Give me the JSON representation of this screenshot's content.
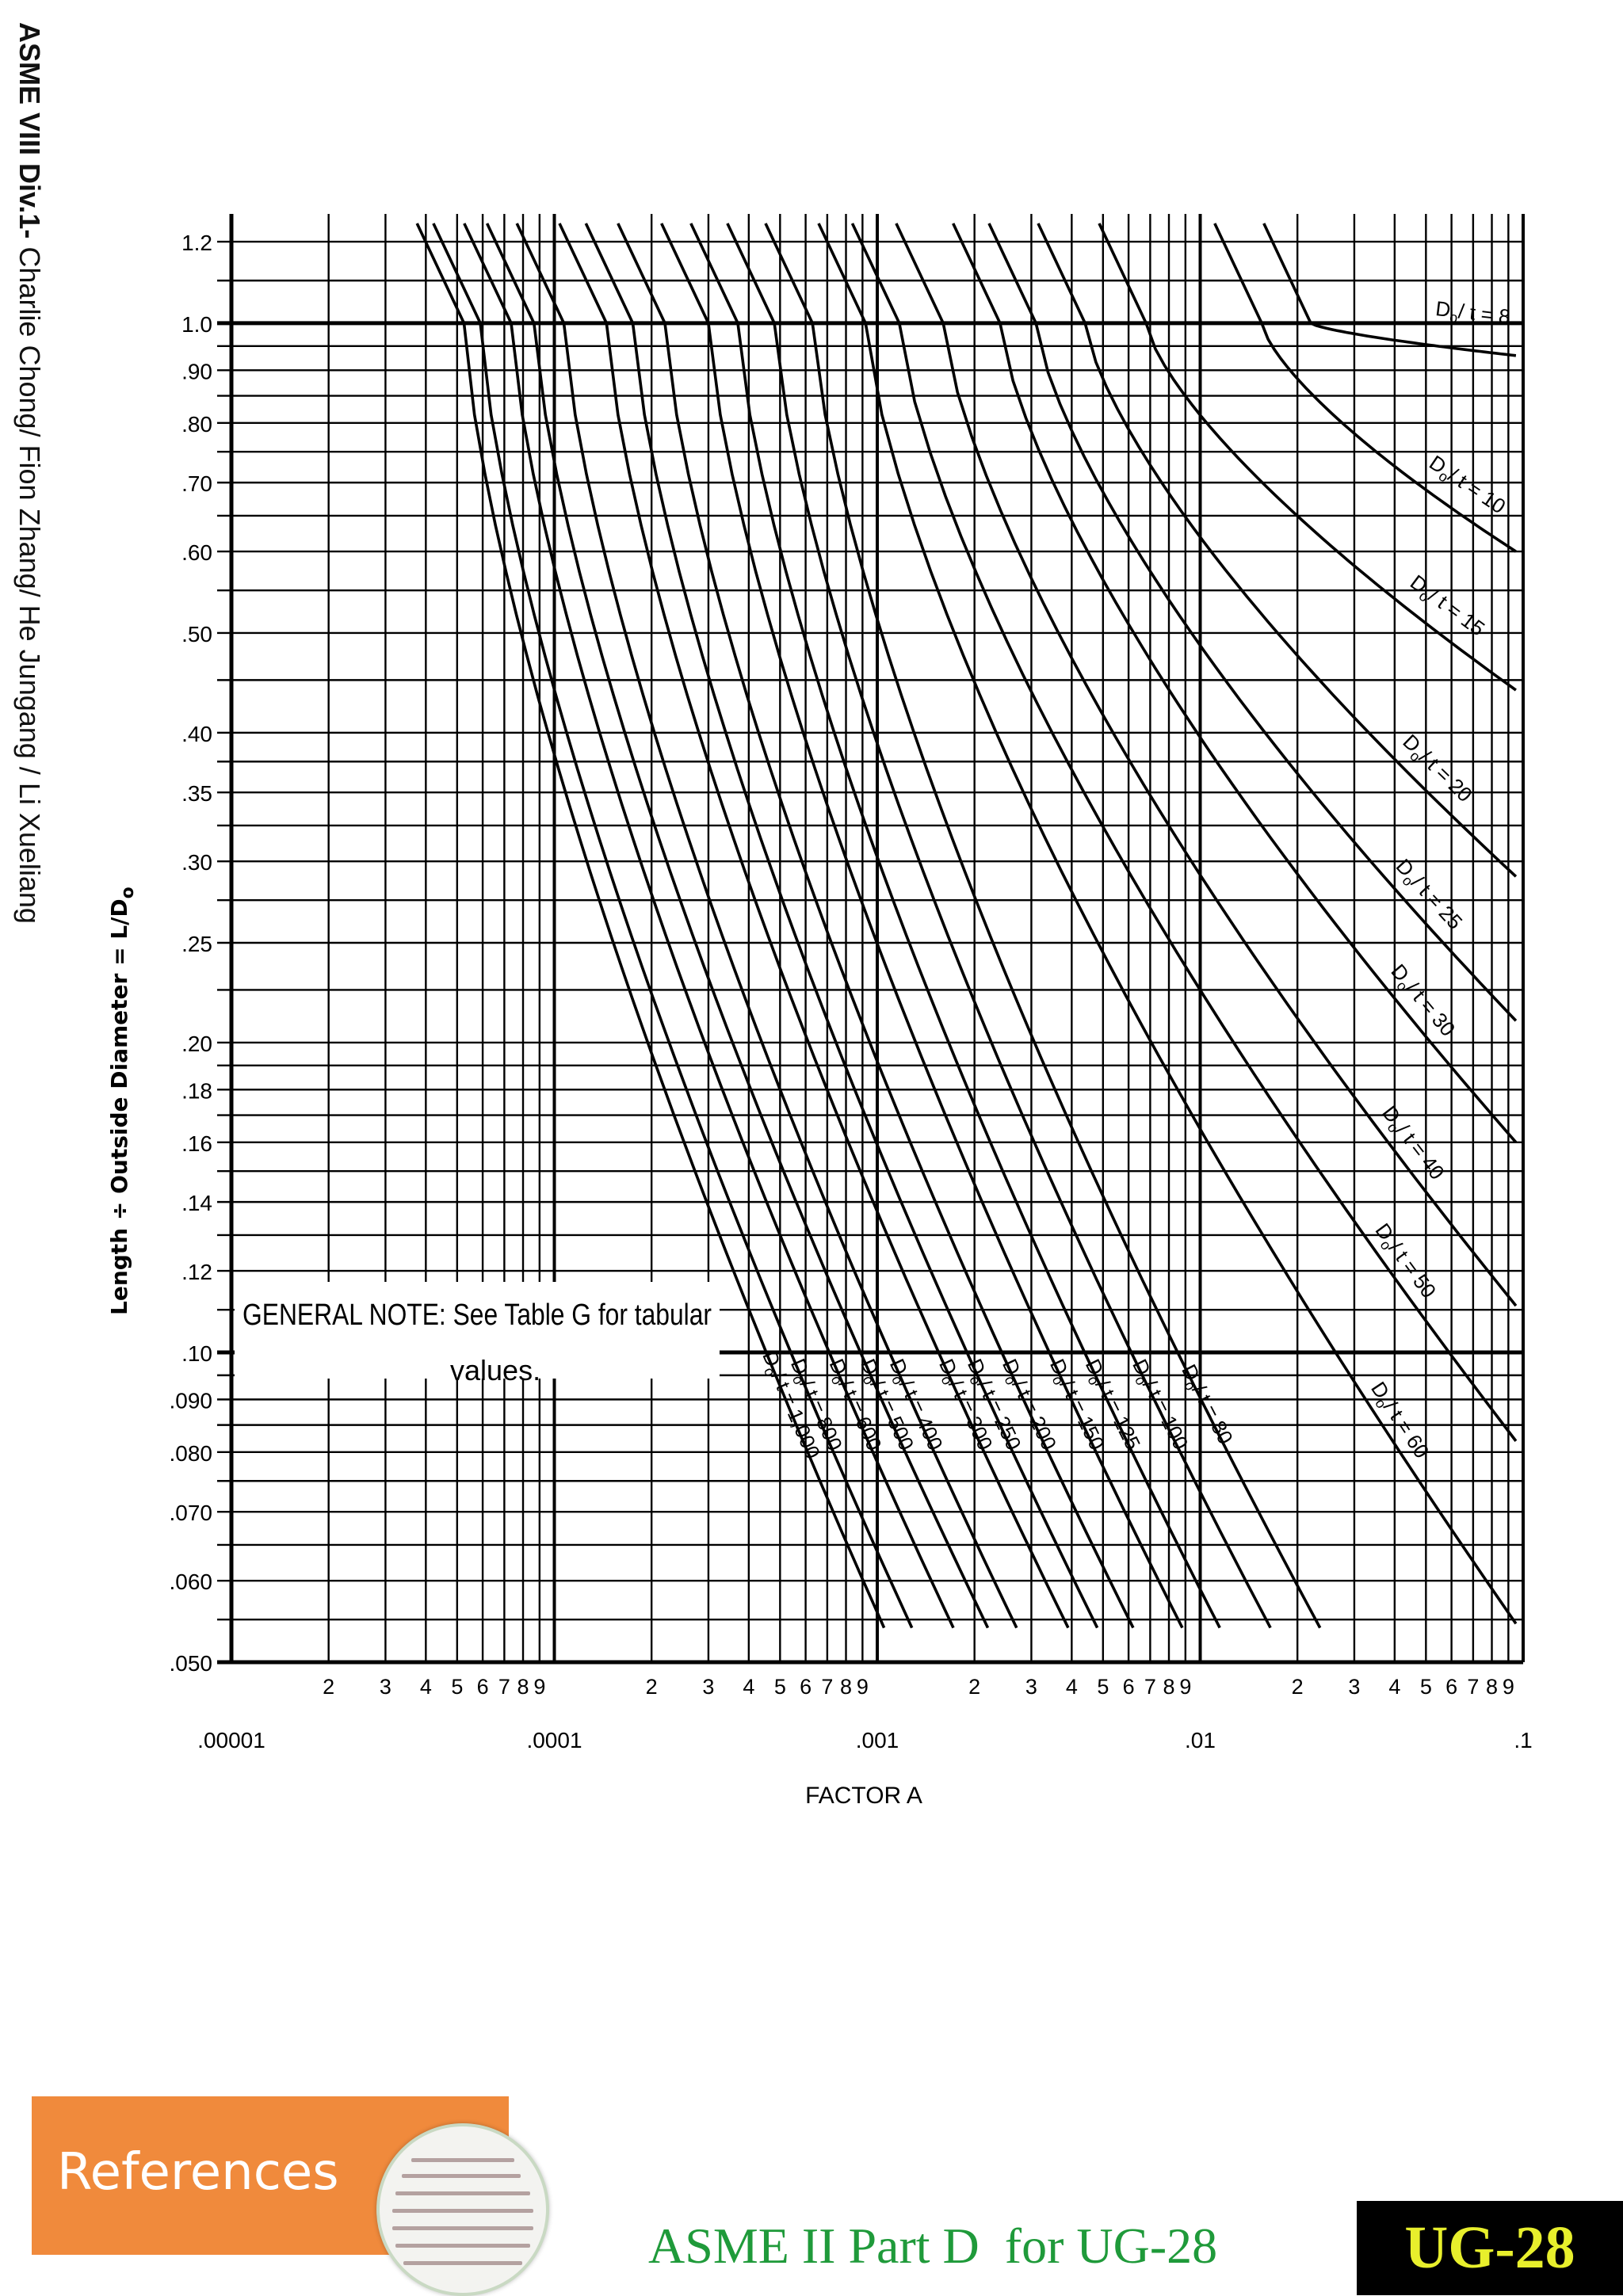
{
  "side_credit": {
    "bold": "ASME VIII Div.1-",
    "rest": " Charlie Chong/ Fion Zhang/ He Jungang / Li Xueliang"
  },
  "chart_data": {
    "type": "line",
    "xscale": "log",
    "yscale": "log",
    "xlim": [
      1e-05,
      0.1
    ],
    "ylim": [
      0.05,
      1.25
    ],
    "xlabel": "FACTOR A",
    "ylabel": "Length ÷ Outside Diameter = L/D",
    "ylabel_subscript": "o",
    "x_decade_labels": [
      ".00001",
      ".0001",
      ".001",
      ".01",
      ".1"
    ],
    "x_minor_labels": [
      "2",
      "3",
      "4",
      "5",
      "6",
      "7",
      "8",
      "9"
    ],
    "y_ticks": [
      {
        "v": 1.2,
        "label": "1.2"
      },
      {
        "v": 1.0,
        "label": "1.0"
      },
      {
        "v": 0.9,
        "label": ".90"
      },
      {
        "v": 0.8,
        "label": ".80"
      },
      {
        "v": 0.7,
        "label": ".70"
      },
      {
        "v": 0.6,
        "label": ".60"
      },
      {
        "v": 0.5,
        "label": ".50"
      },
      {
        "v": 0.4,
        "label": ".40"
      },
      {
        "v": 0.35,
        "label": ".35"
      },
      {
        "v": 0.3,
        "label": ".30"
      },
      {
        "v": 0.25,
        "label": ".25"
      },
      {
        "v": 0.2,
        "label": ".20"
      },
      {
        "v": 0.18,
        "label": ".18"
      },
      {
        "v": 0.16,
        "label": ".16"
      },
      {
        "v": 0.14,
        "label": ".14"
      },
      {
        "v": 0.12,
        "label": ".12"
      },
      {
        "v": 0.1,
        "label": ".10"
      },
      {
        "v": 0.09,
        "label": ".090"
      },
      {
        "v": 0.08,
        "label": ".080"
      },
      {
        "v": 0.07,
        "label": ".070"
      },
      {
        "v": 0.06,
        "label": ".060"
      },
      {
        "v": 0.05,
        "label": ".050"
      }
    ],
    "y_heavy_lines": [
      1.0,
      0.1
    ],
    "note": {
      "line1": "GENERAL NOTE: See Table G for tabular",
      "line2": "values."
    },
    "series": [
      {
        "name": "Do/t = 1,000",
        "label": "1,000",
        "x_at_L_1": 5.25e-05,
        "x_end": 0.00105,
        "y_end": 0.054,
        "label_pos": "bottom"
      },
      {
        "name": "Do/t = 800",
        "label": "800",
        "x_at_L_1": 5.9e-05,
        "x_end": 0.00128,
        "y_end": 0.054,
        "label_pos": "bottom"
      },
      {
        "name": "Do/t = 600",
        "label": "600",
        "x_at_L_1": 7.35e-05,
        "x_end": 0.00172,
        "y_end": 0.054,
        "label_pos": "bottom"
      },
      {
        "name": "Do/t = 500",
        "label": "500",
        "x_at_L_1": 8.65e-05,
        "x_end": 0.0022,
        "y_end": 0.054,
        "label_pos": "bottom"
      },
      {
        "name": "Do/t = 400",
        "label": "400",
        "x_at_L_1": 0.000107,
        "x_end": 0.0027,
        "y_end": 0.054,
        "label_pos": "bottom"
      },
      {
        "name": "Do/t = 300",
        "label": "300",
        "x_at_L_1": 0.000145,
        "x_end": 0.0039,
        "y_end": 0.054,
        "label_pos": "bottom"
      },
      {
        "name": "Do/t = 250",
        "label": "250",
        "x_at_L_1": 0.000175,
        "x_end": 0.0048,
        "y_end": 0.054,
        "label_pos": "bottom"
      },
      {
        "name": "Do/t = 200",
        "label": "200",
        "x_at_L_1": 0.00022,
        "x_end": 0.0062,
        "y_end": 0.054,
        "label_pos": "bottom"
      },
      {
        "name": "Do/t = 150",
        "label": "150",
        "x_at_L_1": 0.0003,
        "x_end": 0.0088,
        "y_end": 0.054,
        "label_pos": "bottom"
      },
      {
        "name": "Do/t = 125",
        "label": "125",
        "x_at_L_1": 0.00037,
        "x_end": 0.0115,
        "y_end": 0.054,
        "label_pos": "bottom"
      },
      {
        "name": "Do/t = 100",
        "label": "100",
        "x_at_L_1": 0.00048,
        "x_end": 0.0165,
        "y_end": 0.054,
        "label_pos": "bottom"
      },
      {
        "name": "Do/t = 80",
        "label": "80",
        "x_at_L_1": 0.00063,
        "x_end": 0.0235,
        "y_end": 0.054,
        "label_pos": "bottom"
      },
      {
        "name": "Do/t = 60",
        "label": "60",
        "x_at_L_1": 0.00092,
        "x_end": 0.095,
        "y_end": 0.0545,
        "label_pos": "right"
      },
      {
        "name": "Do/t = 50",
        "label": "50",
        "x_at_L_1": 0.00117,
        "x_end": 0.095,
        "y_end": 0.082,
        "label_pos": "right"
      },
      {
        "name": "Do/t = 40",
        "label": "40",
        "x_at_L_1": 0.0016,
        "x_end": 0.095,
        "y_end": 0.111,
        "label_pos": "right"
      },
      {
        "name": "Do/t = 30",
        "label": "30",
        "x_at_L_1": 0.0024,
        "x_end": 0.095,
        "y_end": 0.16,
        "label_pos": "right"
      },
      {
        "name": "Do/t = 25",
        "label": "25",
        "x_at_L_1": 0.0031,
        "x_end": 0.095,
        "y_end": 0.21,
        "label_pos": "right"
      },
      {
        "name": "Do/t = 20",
        "label": "20",
        "x_at_L_1": 0.0044,
        "x_end": 0.095,
        "y_end": 0.29,
        "label_pos": "right"
      },
      {
        "name": "Do/t = 15",
        "label": "15",
        "x_at_L_1": 0.0068,
        "x_end": 0.095,
        "y_end": 0.44,
        "label_pos": "right"
      },
      {
        "name": "Do/t = 10",
        "label": "10",
        "x_at_L_1": 0.0155,
        "x_end": 0.095,
        "y_end": 0.6,
        "label_pos": "right"
      },
      {
        "name": "Do/t = 8",
        "label": "8",
        "x_at_L_1": 0.022,
        "x_end": 0.095,
        "y_end": 0.93,
        "label_pos": "right"
      }
    ],
    "series_label_prefix": "D",
    "series_label_sub": "o",
    "series_label_mid": "/ t = ",
    "grid": true
  },
  "footer": {
    "references": "References",
    "title": "ASME II Part D  for UG-28",
    "tag": "UG-28",
    "colors": {
      "banner": "#f08a3c",
      "title": "#1f9a3a",
      "tag_bg": "#000000",
      "tag_text": "#e8ef2c"
    }
  }
}
